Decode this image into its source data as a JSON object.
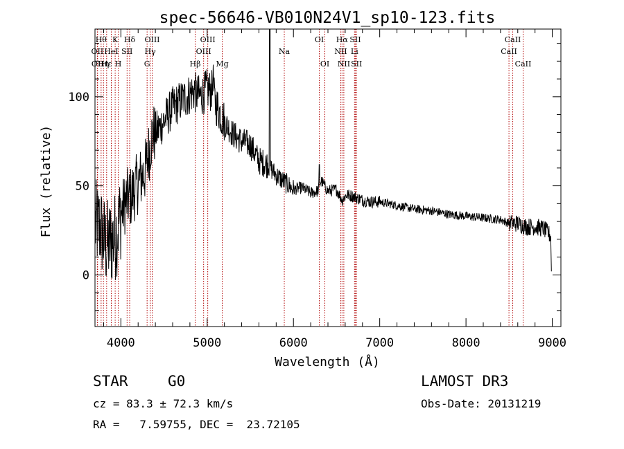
{
  "chart_data": {
    "type": "line",
    "title": "spec-56646-VB010N24V1_sp10-123.fits",
    "xlabel": "Wavelength (Å)",
    "ylabel": "Flux (relative)",
    "xlim": [
      3700,
      9100
    ],
    "ylim": [
      -29,
      138
    ],
    "x_ticks": [
      4000,
      5000,
      6000,
      7000,
      8000,
      9000
    ],
    "y_ticks": [
      0,
      50,
      100
    ],
    "spectrum_anchors": {
      "x": [
        3700,
        3760,
        3820,
        3880,
        3940,
        4000,
        4060,
        4120,
        4200,
        4280,
        4360,
        4440,
        4520,
        4600,
        4680,
        4760,
        4840,
        4920,
        5000,
        5060,
        5100,
        5200,
        5300,
        5400,
        5500,
        5600,
        5700,
        5800,
        5900,
        6000,
        6100,
        6200,
        6280,
        6320,
        6400,
        6500,
        6563,
        6620,
        6700,
        6800,
        6900,
        7000,
        7200,
        7400,
        7600,
        7800,
        8000,
        8200,
        8400,
        8500,
        8600,
        8700,
        8800,
        8900,
        8980
      ],
      "y": [
        28,
        27,
        17,
        18,
        22,
        34,
        42,
        44,
        52,
        58,
        78,
        82,
        88,
        94,
        97,
        100,
        103,
        100,
        104,
        103,
        96,
        86,
        79,
        75,
        73,
        64,
        62,
        56,
        52,
        48,
        49,
        46,
        47,
        53,
        47,
        48,
        42,
        45,
        44,
        42,
        41,
        41,
        39,
        37,
        36,
        34,
        33,
        32,
        31,
        29,
        29,
        27,
        27,
        26,
        22
      ]
    },
    "spikes": [
      {
        "x": 5727,
        "y": 148
      },
      {
        "x": 6300,
        "y": 66
      },
      {
        "x": 5070,
        "y": 118
      }
    ],
    "line_markers": [
      {
        "wave": 3727,
        "label": "OII",
        "row": 2
      },
      {
        "wave": 3730,
        "label": "OII",
        "row": 3
      },
      {
        "wave": 3771,
        "label": "Hθ",
        "row": 1
      },
      {
        "wave": 3798,
        "label": "Hη",
        "row": 3
      },
      {
        "wave": 3835,
        "label": "Hε",
        "row": 3
      },
      {
        "wave": 3889,
        "label": "HeI",
        "row": 2
      },
      {
        "wave": 3934,
        "label": "K",
        "row": 1
      },
      {
        "wave": 3970,
        "label": "H",
        "row": 3
      },
      {
        "wave": 4072,
        "label": "SII",
        "row": 2
      },
      {
        "wave": 4102,
        "label": "Hδ",
        "row": 1
      },
      {
        "wave": 4304,
        "label": "G",
        "row": 3
      },
      {
        "wave": 4340,
        "label": "Hγ",
        "row": 2
      },
      {
        "wave": 4363,
        "label": "OIII",
        "row": 1
      },
      {
        "wave": 4861,
        "label": "Hβ",
        "row": 3
      },
      {
        "wave": 4959,
        "label": "OIII",
        "row": 2
      },
      {
        "wave": 5007,
        "label": "OIII",
        "row": 1
      },
      {
        "wave": 5175,
        "label": "Mg",
        "row": 3
      },
      {
        "wave": 5894,
        "label": "Na",
        "row": 2
      },
      {
        "wave": 6300,
        "label": "OI",
        "row": 1
      },
      {
        "wave": 6364,
        "label": "OI",
        "row": 3
      },
      {
        "wave": 6548,
        "label": "NII",
        "row": 2
      },
      {
        "wave": 6563,
        "label": "Hα",
        "row": 1
      },
      {
        "wave": 6584,
        "label": "NII",
        "row": 3
      },
      {
        "wave": 6708,
        "label": "Li",
        "row": 2
      },
      {
        "wave": 6717,
        "label": "SII",
        "row": 1
      },
      {
        "wave": 6731,
        "label": "SII",
        "row": 3
      },
      {
        "wave": 8498,
        "label": "CaII",
        "row": 2
      },
      {
        "wave": 8542,
        "label": "CaII",
        "row": 1
      },
      {
        "wave": 8662,
        "label": "CaII",
        "row": 3
      }
    ],
    "colors": {
      "spectrum": "#000000",
      "marker": "#b00000",
      "axis": "#000000"
    }
  },
  "info": {
    "object_type": "STAR",
    "subclass": "G0",
    "survey": "LAMOST DR3",
    "redshift_line": "cz = 83.3 ± 72.3 km/s",
    "obs_date": "Obs-Date: 20131219",
    "coords": "RA =   7.59755, DEC =  23.72105"
  }
}
